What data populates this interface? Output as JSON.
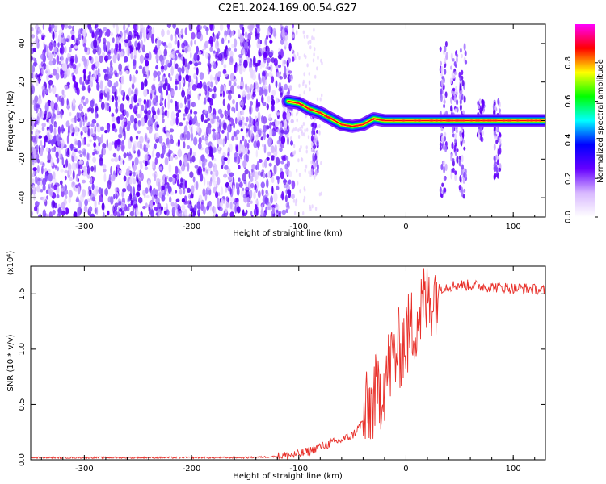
{
  "title": "C2E1.2024.169.00.54.G27",
  "chart_data": [
    {
      "type": "heatmap",
      "xlabel": "Height of straight line (km)",
      "ylabel": "Frequency (Hz)",
      "xlim": [
        -350,
        130
      ],
      "ylim": [
        -50,
        50
      ],
      "x_ticks": [
        -300,
        -200,
        -100,
        0,
        100
      ],
      "y_ticks": [
        -40,
        -20,
        0,
        20,
        40
      ],
      "colorbar": {
        "label": "Normalized spectral amplitude",
        "range": [
          0.0,
          1.0
        ],
        "ticks": [
          "0.0",
          "0.2",
          "0.4",
          "0.6",
          "0.8"
        ],
        "colormap": [
          "#ffffff",
          "#d8b8ff",
          "#6600ff",
          "#0000ff",
          "#00ffff",
          "#00ff00",
          "#ffff00",
          "#ff0000",
          "#ff00ff"
        ]
      },
      "noise_region": {
        "x_range": [
          -350,
          -105
        ],
        "y_range": [
          -50,
          50
        ],
        "level": 0.1
      },
      "ridge": [
        {
          "x": -110,
          "y": 10
        },
        {
          "x": -100,
          "y": 9
        },
        {
          "x": -90,
          "y": 6
        },
        {
          "x": -80,
          "y": 4
        },
        {
          "x": -70,
          "y": 1
        },
        {
          "x": -60,
          "y": -2
        },
        {
          "x": -50,
          "y": -3
        },
        {
          "x": -40,
          "y": -2
        },
        {
          "x": -30,
          "y": 1
        },
        {
          "x": -20,
          "y": 0
        },
        {
          "x": 0,
          "y": 0
        },
        {
          "x": 20,
          "y": 0
        },
        {
          "x": 35,
          "y": 0
        },
        {
          "x": 55,
          "y": 0
        },
        {
          "x": 80,
          "y": 0
        },
        {
          "x": 130,
          "y": 0
        }
      ],
      "vertical_streaks": [
        {
          "x": 35,
          "y_range": [
            -40,
            40
          ]
        },
        {
          "x": 45,
          "y_range": [
            -30,
            35
          ]
        },
        {
          "x": 53,
          "y_range": [
            -40,
            40
          ]
        },
        {
          "x": 70,
          "y_range": [
            -10,
            10
          ]
        },
        {
          "x": 85,
          "y_range": [
            -30,
            10
          ]
        },
        {
          "x": -85,
          "y_range": [
            -28,
            5
          ]
        }
      ]
    },
    {
      "type": "line",
      "xlabel": "Height of straight line (km)",
      "ylabel": "SNR (10 * v/v)",
      "y_multiplier": "(x10⁴)",
      "xlim": [
        -350,
        130
      ],
      "ylim": [
        0.0,
        1.75
      ],
      "x_ticks": [
        -300,
        -200,
        -100,
        0,
        100
      ],
      "y_ticks": [
        "0.0",
        "0.5",
        "1.0",
        "1.5"
      ],
      "line_color": "#e8302a",
      "series": [
        {
          "values_note": "",
          "x": [
            -350,
            -300,
            -250,
            -200,
            -150,
            -120,
            -100,
            -90,
            -80,
            -70,
            -60,
            -50,
            -45,
            -40,
            -35,
            -30,
            -25,
            -20,
            -15,
            -10,
            -5,
            0,
            5,
            10,
            15,
            20,
            25,
            30,
            35,
            40,
            50,
            60,
            70,
            80,
            90,
            100,
            110,
            120,
            130
          ],
          "y": [
            0.02,
            0.02,
            0.02,
            0.02,
            0.02,
            0.03,
            0.05,
            0.08,
            0.12,
            0.15,
            0.18,
            0.22,
            0.28,
            0.35,
            0.45,
            0.55,
            0.62,
            0.72,
            0.85,
            0.95,
            1.02,
            1.1,
            1.18,
            1.28,
            1.38,
            1.45,
            1.5,
            1.54,
            1.56,
            1.57,
            1.58,
            1.58,
            1.57,
            1.56,
            1.56,
            1.55,
            1.55,
            1.54,
            1.53
          ]
        }
      ]
    }
  ]
}
